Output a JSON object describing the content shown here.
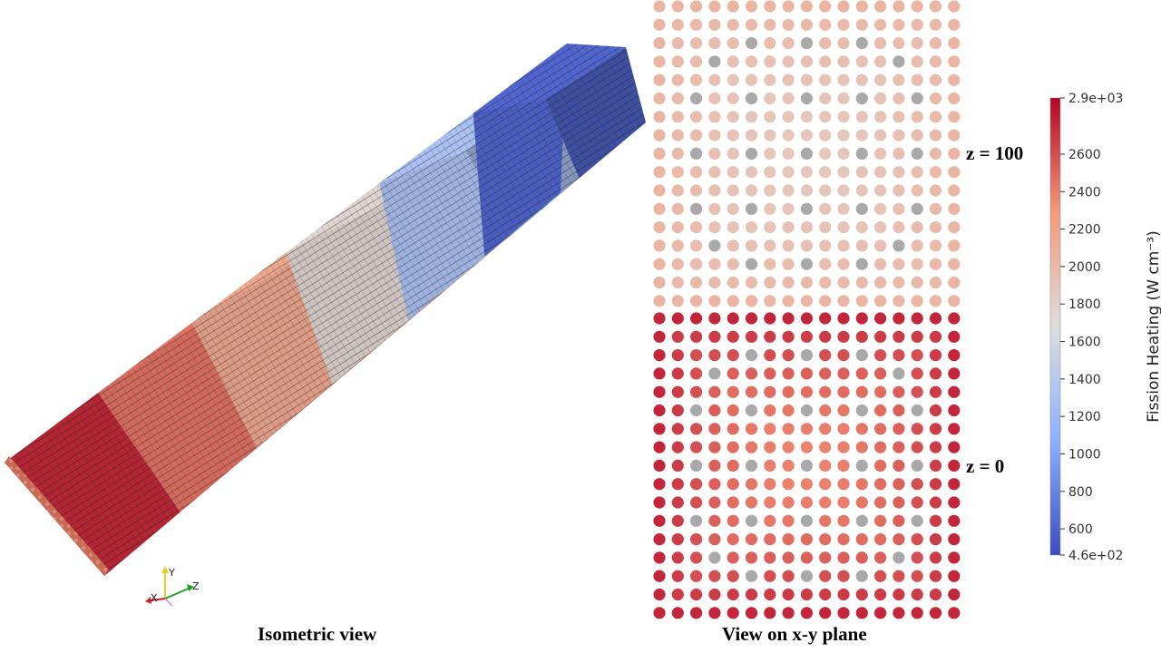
{
  "captions": {
    "isometric": "Isometric view",
    "xy_plane": "View on x-y plane"
  },
  "z_labels": {
    "top": "z = 100",
    "bottom": "z = 0"
  },
  "axes_triad": {
    "x": "X",
    "y": "Y",
    "z": "Z",
    "x_color": "#d22020",
    "y_color": "#e0d020",
    "z_color": "#20a020"
  },
  "colorbar": {
    "title": "Fission Heating (W cm⁻³)",
    "min": 460,
    "max": 2900,
    "min_label": "4.6e+02",
    "max_label": "2.9e+03",
    "ticks": [
      {
        "value": 600,
        "label": "600"
      },
      {
        "value": 800,
        "label": "800"
      },
      {
        "value": 1000,
        "label": "1000"
      },
      {
        "value": 1200,
        "label": "1200"
      },
      {
        "value": 1400,
        "label": "1400"
      },
      {
        "value": 1600,
        "label": "1600"
      },
      {
        "value": 1800,
        "label": "1800"
      },
      {
        "value": 2000,
        "label": "2000"
      },
      {
        "value": 2200,
        "label": "2200"
      },
      {
        "value": 2400,
        "label": "2400"
      },
      {
        "value": 2600,
        "label": "2600"
      }
    ]
  },
  "colors": {
    "low": "#3b4cc0",
    "mid": "#dddddd",
    "high": "#b40426",
    "guide_tube": "#a9a9a9",
    "grid_line": "#1a1a1a"
  },
  "isometric_segments": [
    {
      "heating": 2750
    },
    {
      "heating": 2450
    },
    {
      "heating": 2150
    },
    {
      "heating": 1750
    },
    {
      "heating": 1300
    },
    {
      "heating": 620
    }
  ],
  "pin_map": {
    "rows": 17,
    "cols": 17,
    "guide_tubes": [
      [
        2,
        5
      ],
      [
        2,
        8
      ],
      [
        2,
        11
      ],
      [
        3,
        3
      ],
      [
        3,
        13
      ],
      [
        5,
        2
      ],
      [
        5,
        5
      ],
      [
        5,
        8
      ],
      [
        5,
        11
      ],
      [
        5,
        14
      ],
      [
        8,
        2
      ],
      [
        8,
        5
      ],
      [
        8,
        8
      ],
      [
        8,
        11
      ],
      [
        8,
        14
      ],
      [
        11,
        2
      ],
      [
        11,
        5
      ],
      [
        11,
        8
      ],
      [
        11,
        11
      ],
      [
        11,
        14
      ],
      [
        13,
        3
      ],
      [
        13,
        13
      ],
      [
        14,
        5
      ],
      [
        14,
        8
      ],
      [
        14,
        11
      ]
    ],
    "upper_slice": {
      "heating_center": 1880,
      "heating_edge": 2040
    },
    "lower_slice": {
      "heating_center": 2380,
      "heating_edge": 2760
    }
  }
}
